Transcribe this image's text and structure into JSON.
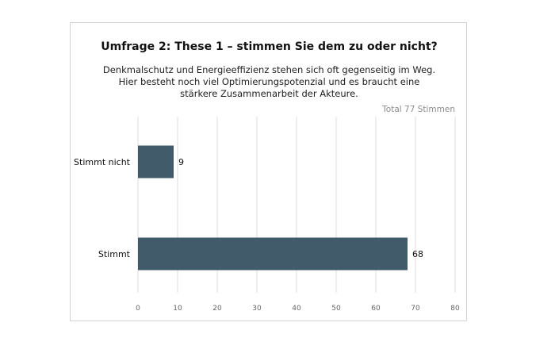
{
  "chart_data": {
    "type": "bar",
    "orientation": "horizontal",
    "title": "Umfrage 2: These 1 – stimmen Sie dem zu oder nicht?",
    "subtitle": "Denkmalschutz und Energieeffizienz stehen sich oft gegenseitig im Weg. Hier besteht noch viel Optimierungspotenzial und es braucht eine stärkere Zusammenarbeit der Akteure.",
    "total_label": "Total 77 Stimmen",
    "categories": [
      "Stimmt nicht",
      "Stimmt"
    ],
    "values": [
      9,
      68
    ],
    "value_labels": [
      "9",
      "68"
    ],
    "xlim": [
      0,
      80
    ],
    "xticks": [
      0,
      10,
      20,
      30,
      40,
      50,
      60,
      70,
      80
    ],
    "xtick_labels": [
      "0",
      "10",
      "20",
      "30",
      "40",
      "50",
      "60",
      "70",
      "80"
    ],
    "grid": true,
    "bar_color": "#425b6a",
    "grid_color": "#dddddd"
  }
}
